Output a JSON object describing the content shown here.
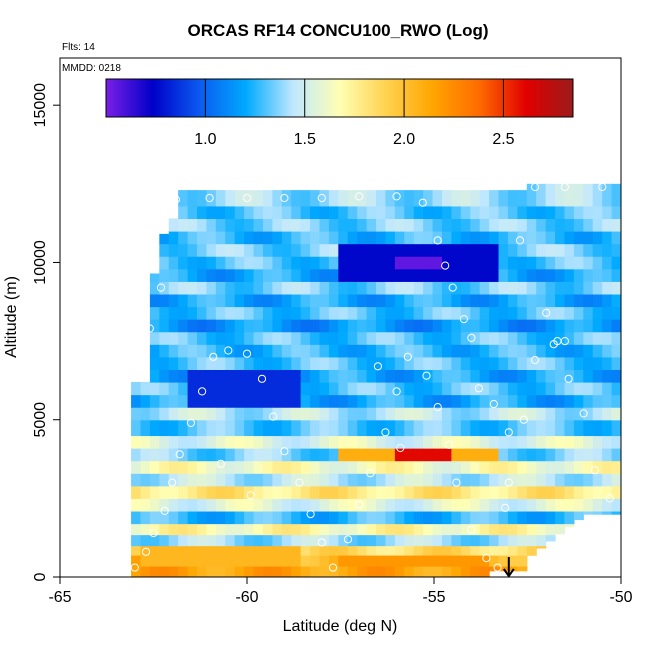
{
  "chart_data": {
    "type": "heatmap",
    "title": "ORCAS RF14 CONCU100_RWO (Log)",
    "info_lines": [
      "Flts: 14",
      "MMDD: 0218"
    ],
    "xlabel": "Latitude (deg N)",
    "ylabel": "Altitude (m)",
    "xlim": [
      -65,
      -50
    ],
    "ylim": [
      0,
      16500
    ],
    "x_ticks": [
      -65,
      -60,
      -55,
      -50
    ],
    "x_tick_labels": [
      "-65",
      "-60",
      "-55",
      "-50"
    ],
    "y_ticks": [
      0,
      5000,
      10000,
      15000
    ],
    "y_tick_labels": [
      "0",
      "5000",
      "10000",
      "15000"
    ],
    "colorbar": {
      "range": [
        0.5,
        2.85
      ],
      "ticks": [
        1.0,
        1.5,
        2.0,
        2.5
      ],
      "tick_labels": [
        "1.0",
        "1.5",
        "2.0",
        "2.5"
      ],
      "colors": [
        "#7a1fe6",
        "#0000c8",
        "#0a5af0",
        "#00aaff",
        "#bfe7ff",
        "#ffffb4",
        "#ffd250",
        "#ffa500",
        "#ff6a00",
        "#e00000",
        "#9b1b1b"
      ]
    },
    "lat_range": [
      -63.1,
      -50.0
    ],
    "alt_range": [
      0,
      12500
    ],
    "layers": [
      {
        "alt": [
          0,
          350
        ],
        "value": 2.15
      },
      {
        "alt": [
          350,
          700
        ],
        "value": 2.05
      },
      {
        "alt": [
          700,
          1000
        ],
        "value": 1.85
      },
      {
        "alt": [
          1000,
          1350
        ],
        "value": 1.4
      },
      {
        "alt": [
          1350,
          1700
        ],
        "value": 1.7
      },
      {
        "alt": [
          1700,
          2100
        ],
        "value": 1.25
      },
      {
        "alt": [
          2100,
          2500
        ],
        "value": 1.55
      },
      {
        "alt": [
          2500,
          2900
        ],
        "value": 1.8
      },
      {
        "alt": [
          2900,
          3300
        ],
        "value": 1.45
      },
      {
        "alt": [
          3300,
          3700
        ],
        "value": 1.65
      },
      {
        "alt": [
          3700,
          4100
        ],
        "value": 1.35
      },
      {
        "alt": [
          4100,
          4500
        ],
        "value": 1.55
      },
      {
        "alt": [
          4500,
          5000
        ],
        "value": 1.3
      },
      {
        "alt": [
          5000,
          5400
        ],
        "value": 1.45
      },
      {
        "alt": [
          5400,
          5800
        ],
        "value": 1.2
      },
      {
        "alt": [
          5800,
          6200
        ],
        "value": 1.3
      },
      {
        "alt": [
          6200,
          6600
        ],
        "value": 1.2
      },
      {
        "alt": [
          6600,
          7000
        ],
        "value": 1.3
      },
      {
        "alt": [
          7000,
          7400
        ],
        "value": 1.25
      },
      {
        "alt": [
          7400,
          7800
        ],
        "value": 1.3
      },
      {
        "alt": [
          7800,
          8200
        ],
        "value": 1.15
      },
      {
        "alt": [
          8200,
          8600
        ],
        "value": 1.3
      },
      {
        "alt": [
          8600,
          9000
        ],
        "value": 1.2
      },
      {
        "alt": [
          9000,
          9400
        ],
        "value": 1.35
      },
      {
        "alt": [
          9400,
          9800
        ],
        "value": 1.2
      },
      {
        "alt": [
          9800,
          10200
        ],
        "value": 1.3
      },
      {
        "alt": [
          10200,
          10600
        ],
        "value": 1.35
      },
      {
        "alt": [
          10600,
          11000
        ],
        "value": 1.25
      },
      {
        "alt": [
          11000,
          11400
        ],
        "value": 1.35
      },
      {
        "alt": [
          11400,
          11800
        ],
        "value": 1.3
      },
      {
        "alt": [
          11800,
          12500
        ],
        "value": 1.4
      }
    ],
    "features": [
      {
        "kind": "low_core",
        "lat": [
          -57.5,
          -53.3
        ],
        "alt": [
          9400,
          10400
        ],
        "value": 0.75
      },
      {
        "kind": "low_core",
        "lat": [
          -56.0,
          -54.8
        ],
        "alt": [
          9700,
          10100
        ],
        "value": 0.55
      },
      {
        "kind": "low_core",
        "lat": [
          -61.7,
          -58.5
        ],
        "alt": [
          5300,
          6400
        ],
        "value": 0.85
      },
      {
        "kind": "high_band",
        "lat": [
          -57.5,
          -53.3
        ],
        "alt": [
          3700,
          4200
        ],
        "value": 2.1
      },
      {
        "kind": "high_band",
        "lat": [
          -56.0,
          -54.6
        ],
        "alt": [
          3800,
          4100
        ],
        "value": 2.6
      },
      {
        "kind": "high_band",
        "lat": [
          -62.8,
          -58.5
        ],
        "alt": [
          500,
          1100
        ],
        "value": 2.05
      },
      {
        "kind": "high_band",
        "lat": [
          -57.5,
          -53.5
        ],
        "alt": [
          250,
          800
        ],
        "value": 2.2
      }
    ],
    "flight_points": [
      {
        "lat": -63.0,
        "alt": 300
      },
      {
        "lat": -62.7,
        "alt": 800
      },
      {
        "lat": -62.5,
        "alt": 1400
      },
      {
        "lat": -62.2,
        "alt": 2100
      },
      {
        "lat": -62.0,
        "alt": 3000
      },
      {
        "lat": -61.8,
        "alt": 3900
      },
      {
        "lat": -61.5,
        "alt": 4900
      },
      {
        "lat": -61.2,
        "alt": 5900
      },
      {
        "lat": -60.9,
        "alt": 7000
      },
      {
        "lat": -60.5,
        "alt": 7200
      },
      {
        "lat": -60.0,
        "alt": 7100
      },
      {
        "lat": -59.6,
        "alt": 6300
      },
      {
        "lat": -59.3,
        "alt": 5100
      },
      {
        "lat": -59.0,
        "alt": 4000
      },
      {
        "lat": -58.6,
        "alt": 3000
      },
      {
        "lat": -58.3,
        "alt": 2000
      },
      {
        "lat": -58.0,
        "alt": 1100
      },
      {
        "lat": -57.7,
        "alt": 300
      },
      {
        "lat": -57.3,
        "alt": 1200
      },
      {
        "lat": -57.0,
        "alt": 2300
      },
      {
        "lat": -56.7,
        "alt": 3300
      },
      {
        "lat": -56.3,
        "alt": 4600
      },
      {
        "lat": -56.0,
        "alt": 5900
      },
      {
        "lat": -55.7,
        "alt": 7000
      },
      {
        "lat": -55.2,
        "alt": 6400
      },
      {
        "lat": -54.9,
        "alt": 5400
      },
      {
        "lat": -54.6,
        "alt": 4200
      },
      {
        "lat": -54.4,
        "alt": 3000
      },
      {
        "lat": -54.0,
        "alt": 1500
      },
      {
        "lat": -53.6,
        "alt": 600
      },
      {
        "lat": -53.3,
        "alt": 300
      },
      {
        "lat": -53.0,
        "alt": 3000
      },
      {
        "lat": -52.6,
        "alt": 5000
      },
      {
        "lat": -52.3,
        "alt": 6900
      },
      {
        "lat": -52.0,
        "alt": 8400
      },
      {
        "lat": -51.7,
        "alt": 7500
      },
      {
        "lat": -51.4,
        "alt": 6300
      },
      {
        "lat": -51.0,
        "alt": 5200
      },
      {
        "lat": -50.7,
        "alt": 3400
      },
      {
        "lat": -50.3,
        "alt": 2500
      },
      {
        "lat": -62.6,
        "alt": 7900
      },
      {
        "lat": -62.3,
        "alt": 9200
      },
      {
        "lat": -61.9,
        "alt": 12000
      },
      {
        "lat": -61.0,
        "alt": 12050
      },
      {
        "lat": -60.0,
        "alt": 12050
      },
      {
        "lat": -59.0,
        "alt": 12050
      },
      {
        "lat": -58.0,
        "alt": 12050
      },
      {
        "lat": -57.0,
        "alt": 12100
      },
      {
        "lat": -56.0,
        "alt": 12100
      },
      {
        "lat": -55.3,
        "alt": 11900
      },
      {
        "lat": -54.9,
        "alt": 10700
      },
      {
        "lat": -54.7,
        "alt": 9900
      },
      {
        "lat": -54.5,
        "alt": 9200
      },
      {
        "lat": -54.2,
        "alt": 8200
      },
      {
        "lat": -54.0,
        "alt": 7600
      },
      {
        "lat": -53.8,
        "alt": 6000
      },
      {
        "lat": -53.4,
        "alt": 5500
      },
      {
        "lat": -53.0,
        "alt": 4600
      },
      {
        "lat": -52.7,
        "alt": 10700
      },
      {
        "lat": -52.3,
        "alt": 12400
      },
      {
        "lat": -51.5,
        "alt": 12400
      },
      {
        "lat": -50.5,
        "alt": 12400
      },
      {
        "lat": -51.8,
        "alt": 7400
      },
      {
        "lat": -51.5,
        "alt": 7500
      },
      {
        "lat": -60.7,
        "alt": 3600
      },
      {
        "lat": -59.9,
        "alt": 2600
      },
      {
        "lat": -56.5,
        "alt": 6700
      },
      {
        "lat": -55.9,
        "alt": 4100
      },
      {
        "lat": -53.1,
        "alt": 2200
      }
    ],
    "arrow_marker": {
      "lat": -53.0,
      "direction": "down"
    }
  }
}
